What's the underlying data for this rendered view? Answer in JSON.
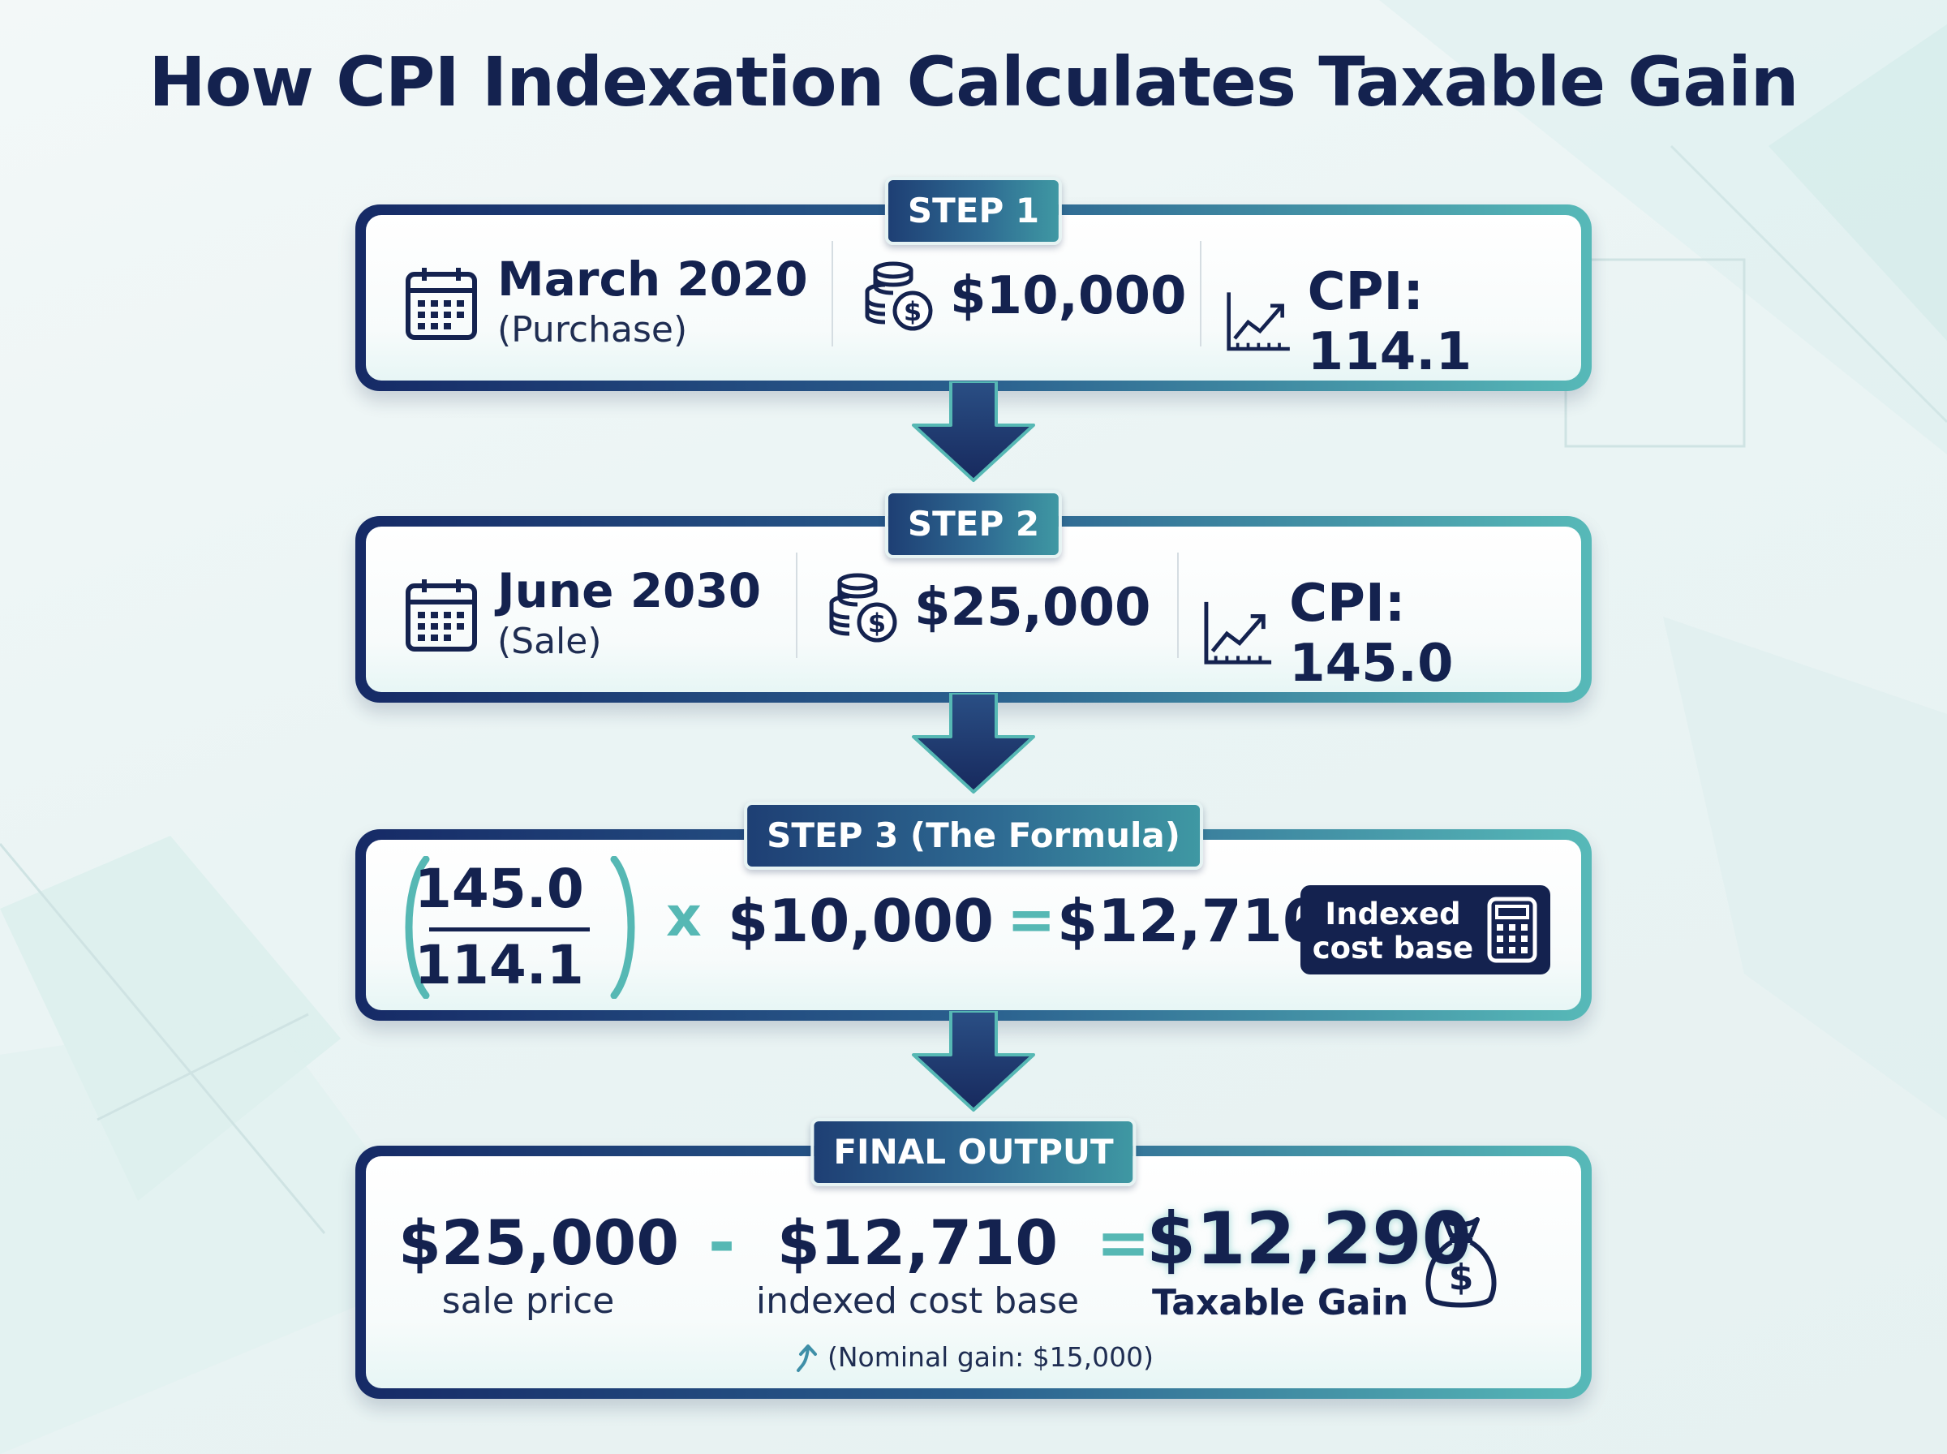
{
  "title": "How CPI Indexation Calculates Taxable Gain",
  "steps": [
    {
      "badge": "STEP 1",
      "date": "March 2020",
      "date_note": "(Purchase)",
      "amount": "$10,000",
      "cpi": "CPI: 114.1"
    },
    {
      "badge": "STEP 2",
      "date": "June 2030",
      "date_note": "(Sale)",
      "amount": "$25,000",
      "cpi": "CPI: 145.0"
    }
  ],
  "formula": {
    "badge": "STEP 3 (The Formula)",
    "numerator": "145.0",
    "denominator": "114.1",
    "multiply": "x",
    "multiplier": "$10,000",
    "equals": "=",
    "result": "$12,710",
    "result_tag_line1": "Indexed",
    "result_tag_line2": "cost base"
  },
  "final": {
    "badge": "FINAL OUTPUT",
    "sale_value": "$25,000",
    "sale_label": "sale price",
    "minus": "-",
    "cost_value": "$12,710",
    "cost_label": "indexed cost base",
    "equals": "=",
    "gain_value": "$12,290",
    "gain_label": "Taxable Gain",
    "nominal_note": "(Nominal gain: $15,000)"
  },
  "icons": {
    "date": "calendar-icon",
    "amount": "coins-dollar-icon",
    "cpi": "line-chart-icon",
    "tag": "calculator-icon",
    "gain": "money-bag-icon",
    "note": "curved-arrow-up-icon"
  },
  "colors": {
    "navy": "#14224f",
    "teal": "#56b8b4",
    "badge_start": "#1e3f74",
    "badge_end": "#3f98a3"
  }
}
